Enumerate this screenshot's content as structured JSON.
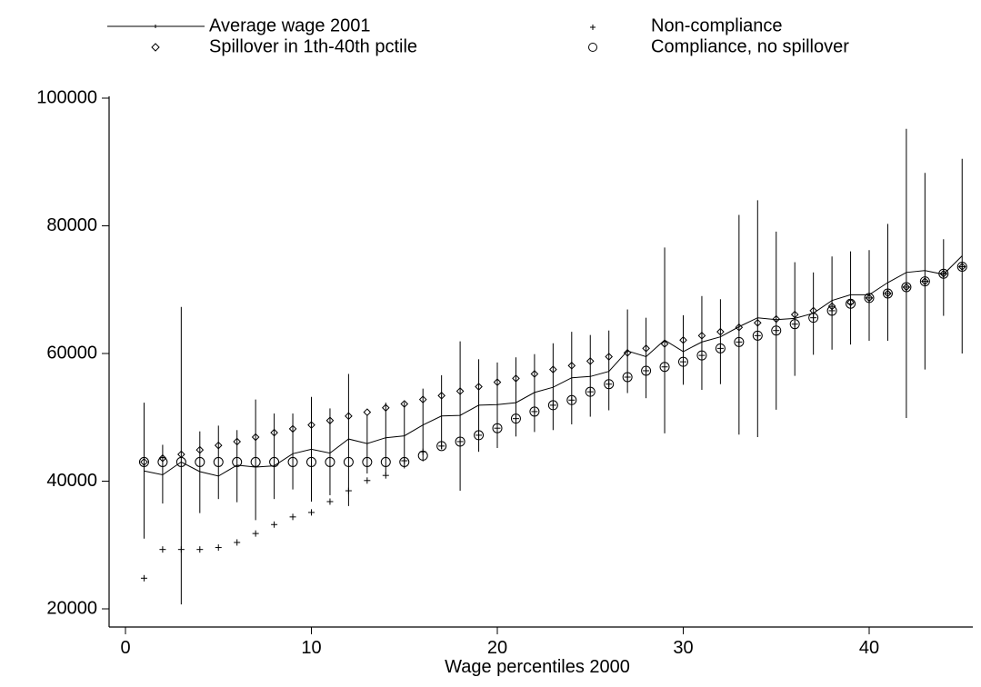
{
  "chart_data": {
    "type": "scatter",
    "title": "",
    "xlabel": "Wage percentiles 2000",
    "ylabel": "",
    "xlim": [
      0,
      45
    ],
    "ylim": [
      20000,
      100000
    ],
    "xticks": [
      0,
      10,
      20,
      30,
      40
    ],
    "yticks": [
      20000,
      40000,
      60000,
      80000,
      100000
    ],
    "legend_position": "top",
    "x": [
      1,
      2,
      3,
      4,
      5,
      6,
      7,
      8,
      9,
      10,
      11,
      12,
      13,
      14,
      15,
      16,
      17,
      18,
      19,
      20,
      21,
      22,
      23,
      24,
      25,
      26,
      27,
      28,
      29,
      30,
      31,
      32,
      33,
      34,
      35,
      36,
      37,
      38,
      39,
      40,
      41,
      42,
      43,
      44,
      45
    ],
    "series": [
      {
        "name": "Average wage 2001",
        "kind": "line",
        "values": [
          41600,
          41000,
          43000,
          41500,
          40800,
          42500,
          42200,
          42400,
          44300,
          45000,
          44400,
          46600,
          45900,
          46800,
          47100,
          48800,
          50200,
          50300,
          51900,
          52000,
          52300,
          53900,
          54700,
          56200,
          56400,
          57200,
          60400,
          59500,
          62100,
          60300,
          61800,
          62600,
          64200,
          65600,
          65300,
          65500,
          66300,
          68300,
          69200,
          69200,
          71100,
          72700,
          73000,
          72400,
          75300
        ]
      },
      {
        "name": "Non-compliance",
        "kind": "plus",
        "values": [
          24800,
          29300,
          29300,
          29300,
          29600,
          30400,
          31800,
          33200,
          34400,
          35100,
          36800,
          38500,
          40100,
          40900,
          43200,
          44600,
          45500,
          46200,
          47200,
          48300,
          49800,
          50900,
          51900,
          52700,
          54000,
          55200,
          56300,
          57300,
          57900,
          58700,
          59700,
          60800,
          61800,
          62800,
          63600,
          64600,
          65600,
          66700,
          67800,
          68700,
          69400,
          70400,
          71300,
          72500,
          73600
        ]
      },
      {
        "name": "Spillover in 1th-40th pctile",
        "kind": "diamond",
        "values": [
          43000,
          43600,
          44200,
          44900,
          45600,
          46200,
          46900,
          47600,
          48200,
          48800,
          49500,
          50200,
          50800,
          51500,
          52100,
          52800,
          53400,
          54100,
          54800,
          55500,
          56100,
          56800,
          57500,
          58100,
          58800,
          59500,
          60100,
          60800,
          61500,
          62100,
          62800,
          63400,
          64100,
          64800,
          65400,
          66100,
          66700,
          67400,
          68000,
          68700,
          69400,
          70400,
          71300,
          72500,
          73600
        ]
      },
      {
        "name": "Compliance, no spillover",
        "kind": "circle",
        "values": [
          43000,
          43000,
          43000,
          43000,
          43000,
          43000,
          43000,
          43000,
          43000,
          43000,
          43000,
          43000,
          43000,
          43000,
          43000,
          44000,
          45500,
          46200,
          47200,
          48300,
          49800,
          50900,
          51900,
          52700,
          54000,
          55200,
          56300,
          57300,
          57900,
          58700,
          59700,
          60800,
          61800,
          62800,
          63600,
          64600,
          65600,
          66700,
          67800,
          68700,
          69400,
          70400,
          71300,
          72500,
          73600
        ]
      }
    ],
    "confidence_intervals": {
      "low": [
        31000,
        36500,
        20700,
        35000,
        37200,
        36700,
        33900,
        37200,
        38700,
        36800,
        37800,
        36100,
        41200,
        41100,
        42000,
        43100,
        45000,
        38500,
        44600,
        45200,
        47000,
        47700,
        48000,
        48900,
        50100,
        51100,
        53800,
        53000,
        47500,
        55100,
        54300,
        55200,
        47300,
        46900,
        51200,
        56500,
        59800,
        60600,
        61400,
        62000,
        62000,
        49900,
        57500,
        65900,
        60000
      ],
      "high": [
        52300,
        45700,
        67300,
        47800,
        48700,
        48000,
        52800,
        50600,
        50600,
        53200,
        51400,
        56800,
        50400,
        52300,
        52400,
        54500,
        56600,
        61900,
        59100,
        58600,
        59400,
        59900,
        61600,
        63400,
        62900,
        63600,
        66900,
        65600,
        76600,
        66000,
        69000,
        68500,
        81700,
        84000,
        79100,
        74300,
        72700,
        75200,
        76000,
        76200,
        80300,
        95200,
        88300,
        77900,
        90500
      ]
    }
  },
  "legend": {
    "items": [
      {
        "label": "Average wage 2001"
      },
      {
        "label": "Non-compliance"
      },
      {
        "label": "Spillover in 1th-40th pctile"
      },
      {
        "label": "Compliance, no spillover"
      }
    ]
  }
}
